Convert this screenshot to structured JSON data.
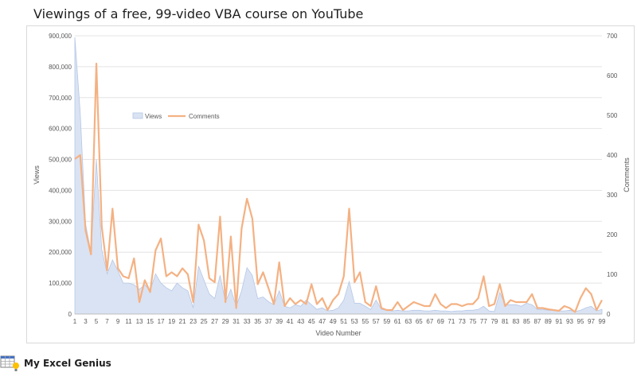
{
  "title": "Viewings of a free, 99-video VBA course on YouTube",
  "footer": {
    "brand": "My Excel Genius",
    "logo_icon": "spreadsheet-lightbulb-icon"
  },
  "chart_data": {
    "type": "area+line",
    "xlabel": "Video Number",
    "ylabel": "Views",
    "y2label": "Comments",
    "ylim": [
      0,
      900000
    ],
    "y2lim": [
      0,
      700
    ],
    "yticks": [
      "0",
      "100,000",
      "200,000",
      "300,000",
      "400,000",
      "500,000",
      "600,000",
      "700,000",
      "800,000",
      "900,000"
    ],
    "y2ticks": [
      "0",
      "100",
      "200",
      "300",
      "400",
      "500",
      "600",
      "700"
    ],
    "xticks": [
      "1",
      "3",
      "5",
      "7",
      "9",
      "11",
      "13",
      "15",
      "17",
      "19",
      "21",
      "23",
      "25",
      "27",
      "29",
      "31",
      "33",
      "35",
      "37",
      "39",
      "41",
      "43",
      "45",
      "47",
      "49",
      "51",
      "53",
      "55",
      "57",
      "59",
      "61",
      "63",
      "65",
      "67",
      "69",
      "71",
      "73",
      "75",
      "77",
      "79",
      "81",
      "83",
      "85",
      "87",
      "89",
      "91",
      "93",
      "95",
      "97",
      "99"
    ],
    "x": [
      1,
      2,
      3,
      4,
      5,
      6,
      7,
      8,
      9,
      10,
      11,
      12,
      13,
      14,
      15,
      16,
      17,
      18,
      19,
      20,
      21,
      22,
      23,
      24,
      25,
      26,
      27,
      28,
      29,
      30,
      31,
      32,
      33,
      34,
      35,
      36,
      37,
      38,
      39,
      40,
      41,
      42,
      43,
      44,
      45,
      46,
      47,
      48,
      49,
      50,
      51,
      52,
      53,
      54,
      55,
      56,
      57,
      58,
      59,
      60,
      61,
      62,
      63,
      64,
      65,
      66,
      67,
      68,
      69,
      70,
      71,
      72,
      73,
      74,
      75,
      76,
      77,
      78,
      79,
      80,
      81,
      82,
      83,
      84,
      85,
      86,
      87,
      88,
      89,
      90,
      91,
      92,
      93,
      94,
      95,
      96,
      97,
      98,
      99
    ],
    "legend_position": "upper-left-inside",
    "grid": "horizontal",
    "series": [
      {
        "name": "Views",
        "axis": "left",
        "style": "area",
        "color": "#dae3f3",
        "edge_color": "#b4c7e7",
        "values": [
          895000,
          650000,
          290000,
          200000,
          500000,
          210000,
          130000,
          175000,
          140000,
          100000,
          100000,
          95000,
          80000,
          95000,
          75000,
          130000,
          100000,
          85000,
          75000,
          100000,
          85000,
          75000,
          20000,
          155000,
          110000,
          65000,
          50000,
          125000,
          40000,
          80000,
          25000,
          75000,
          150000,
          125000,
          50000,
          55000,
          40000,
          30000,
          75000,
          25000,
          20000,
          30000,
          25000,
          45000,
          30000,
          15000,
          20000,
          10000,
          12000,
          20000,
          45000,
          105000,
          35000,
          35000,
          25000,
          15000,
          45000,
          15000,
          12000,
          10000,
          12000,
          10000,
          10000,
          12000,
          12000,
          10000,
          10000,
          12000,
          10000,
          10000,
          8000,
          10000,
          10000,
          12000,
          12000,
          15000,
          25000,
          10000,
          8000,
          70000,
          30000,
          30000,
          30000,
          25000,
          35000,
          30000,
          15000,
          15000,
          12000,
          12000,
          10000,
          10000,
          12000,
          8000,
          12000,
          20000,
          25000,
          10000,
          15000
        ]
      },
      {
        "name": "Comments",
        "axis": "right",
        "style": "line",
        "color": "#f4b183",
        "values": [
          390,
          400,
          210,
          150,
          630,
          220,
          110,
          265,
          115,
          95,
          90,
          140,
          30,
          85,
          55,
          160,
          190,
          95,
          105,
          95,
          115,
          100,
          30,
          225,
          185,
          90,
          80,
          245,
          30,
          195,
          15,
          215,
          290,
          240,
          75,
          105,
          65,
          25,
          130,
          20,
          40,
          25,
          35,
          25,
          75,
          25,
          40,
          10,
          35,
          50,
          95,
          265,
          80,
          105,
          30,
          20,
          70,
          15,
          10,
          10,
          30,
          10,
          20,
          30,
          25,
          20,
          20,
          50,
          25,
          15,
          25,
          25,
          20,
          25,
          25,
          40,
          95,
          20,
          25,
          75,
          20,
          35,
          30,
          30,
          30,
          50,
          15,
          15,
          12,
          10,
          8,
          20,
          15,
          5,
          40,
          65,
          50,
          10,
          35
        ]
      }
    ]
  }
}
